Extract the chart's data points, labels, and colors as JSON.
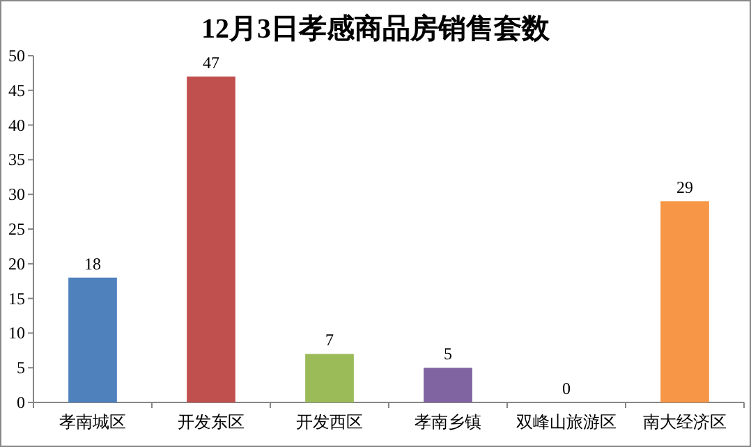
{
  "chart_data": {
    "type": "bar",
    "title": "12月3日孝感商品房销售套数",
    "categories": [
      "孝南城区",
      "开发东区",
      "开发西区",
      "孝南乡镇",
      "双峰山旅游区",
      "南大经济区"
    ],
    "values": [
      18,
      47,
      7,
      5,
      0,
      29
    ],
    "colors": [
      "#4f81bd",
      "#c0504d",
      "#9bbb59",
      "#8064a2",
      "#4bacc6",
      "#f79646"
    ],
    "ylim": [
      0,
      50
    ],
    "yticks": [
      0,
      5,
      10,
      15,
      20,
      25,
      30,
      35,
      40,
      45,
      50
    ],
    "data_labels": true
  }
}
